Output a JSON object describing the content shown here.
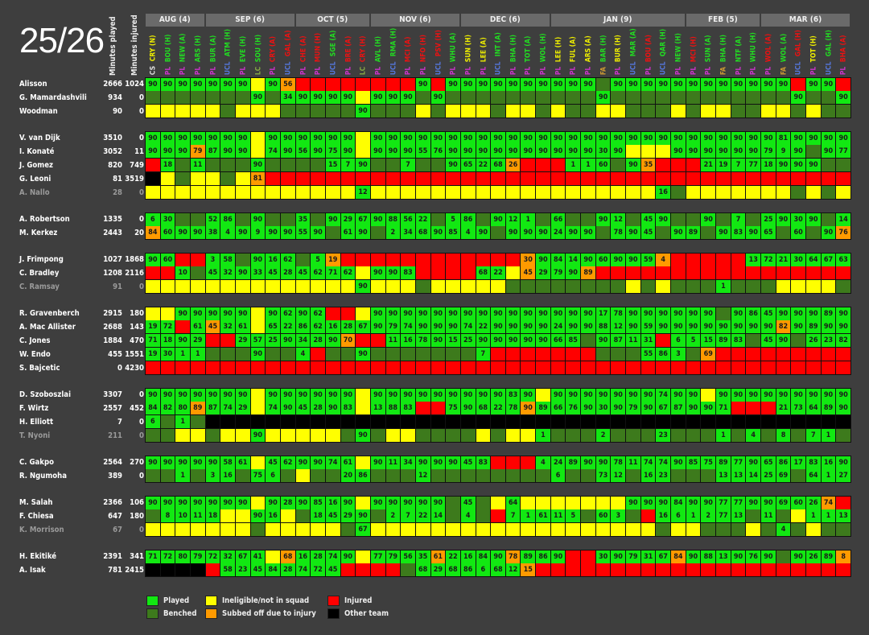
{
  "season": "25/26",
  "headers": {
    "minutes_played": "Minutes played",
    "minutes_injured": "Minutes injured"
  },
  "colors": {
    "played": "#12e812",
    "benched": "#3d7a1c",
    "ineligible": "#ffff00",
    "injured": "#ff0000",
    "subbed_injury": "#ff9a00",
    "other_team": "#000000",
    "win": "#22dd22",
    "loss": "#ee1111",
    "draw": "#eeee00",
    "PL": "#cc33cc",
    "UCL": "#5577dd",
    "LC": "#88aa44",
    "FA": "#cc9933",
    "CS": "#dddddd"
  },
  "months": [
    {
      "label": "AUG (4)",
      "span": 4
    },
    {
      "label": "SEP (6)",
      "span": 6
    },
    {
      "label": "OCT (5)",
      "span": 5
    },
    {
      "label": "NOV (6)",
      "span": 6
    },
    {
      "label": "DEC (6)",
      "span": 6
    },
    {
      "label": "JAN (9)",
      "span": 9
    },
    {
      "label": "FEB (5)",
      "span": 5
    },
    {
      "label": "MAR (6)",
      "span": 6
    }
  ],
  "matches": [
    {
      "comp": "CS",
      "opp": "CRY (N)",
      "result": "D"
    },
    {
      "comp": "PL",
      "opp": "BOU (H)",
      "result": "W"
    },
    {
      "comp": "PL",
      "opp": "NEW (A)",
      "result": "W"
    },
    {
      "comp": "PL",
      "opp": "ARS (H)",
      "result": "W"
    },
    {
      "comp": "PL",
      "opp": "BUR (A)",
      "result": "W"
    },
    {
      "comp": "UCL",
      "opp": "ATM (H)",
      "result": "W"
    },
    {
      "comp": "PL",
      "opp": "EVE (H)",
      "result": "W"
    },
    {
      "comp": "LC",
      "opp": "SOU (H)",
      "result": "W"
    },
    {
      "comp": "PL",
      "opp": "CRY (A)",
      "result": "L"
    },
    {
      "comp": "UCL",
      "opp": "GAL (A)",
      "result": "L"
    },
    {
      "comp": "PL",
      "opp": "CHE (A)",
      "result": "L"
    },
    {
      "comp": "PL",
      "opp": "MUN (H)",
      "result": "L"
    },
    {
      "comp": "UCL",
      "opp": "SGE (A)",
      "result": "W"
    },
    {
      "comp": "PL",
      "opp": "BRE (A)",
      "result": "L"
    },
    {
      "comp": "LC",
      "opp": "CRY (H)",
      "result": "L"
    },
    {
      "comp": "PL",
      "opp": "AVL (H)",
      "result": "W"
    },
    {
      "comp": "UCL",
      "opp": "RMA (H)",
      "result": "W"
    },
    {
      "comp": "PL",
      "opp": "MCI (A)",
      "result": "L"
    },
    {
      "comp": "PL",
      "opp": "NFO (H)",
      "result": "L"
    },
    {
      "comp": "UCL",
      "opp": "PSV (H)",
      "result": "L"
    },
    {
      "comp": "PL",
      "opp": "WHU (A)",
      "result": "W"
    },
    {
      "comp": "PL",
      "opp": "SUN (H)",
      "result": "D"
    },
    {
      "comp": "PL",
      "opp": "LEE (A)",
      "result": "D"
    },
    {
      "comp": "UCL",
      "opp": "INT (A)",
      "result": "W"
    },
    {
      "comp": "PL",
      "opp": "BHA (H)",
      "result": "W"
    },
    {
      "comp": "PL",
      "opp": "TOT (A)",
      "result": "W"
    },
    {
      "comp": "PL",
      "opp": "WOL (H)",
      "result": "W"
    },
    {
      "comp": "PL",
      "opp": "LEE (H)",
      "result": "D"
    },
    {
      "comp": "PL",
      "opp": "FUL (A)",
      "result": "D"
    },
    {
      "comp": "PL",
      "opp": "ARS (A)",
      "result": "D"
    },
    {
      "comp": "FA",
      "opp": "BAR (H)",
      "result": "W"
    },
    {
      "comp": "PL",
      "opp": "BUR (H)",
      "result": "D"
    },
    {
      "comp": "UCL",
      "opp": "MAR (A)",
      "result": "W"
    },
    {
      "comp": "PL",
      "opp": "BOU (A)",
      "result": "L"
    },
    {
      "comp": "UCL",
      "opp": "QAR (H)",
      "result": "W"
    },
    {
      "comp": "PL",
      "opp": "NEW (H)",
      "result": "W"
    },
    {
      "comp": "PL",
      "opp": "MCI (H)",
      "result": "L"
    },
    {
      "comp": "PL",
      "opp": "SUN (A)",
      "result": "W"
    },
    {
      "comp": "FA",
      "opp": "BHA (H)",
      "result": "W"
    },
    {
      "comp": "PL",
      "opp": "NTF (A)",
      "result": "W"
    },
    {
      "comp": "PL",
      "opp": "WHU (H)",
      "result": "W"
    },
    {
      "comp": "PL",
      "opp": "WOL (A)",
      "result": "L"
    },
    {
      "comp": "FA",
      "opp": "WOL (A)",
      "result": "W"
    },
    {
      "comp": "UCL",
      "opp": "GAL (H)",
      "result": "L"
    },
    {
      "comp": "PL",
      "opp": "TOT (H)",
      "result": "D"
    },
    {
      "comp": "UCL",
      "opp": "GAL (H)",
      "result": "W"
    },
    {
      "comp": "PL",
      "opp": "BHA (A)",
      "result": "L"
    }
  ],
  "cell_codes": {
    "B": "benched",
    "Y": "ineligible",
    "R": "injured",
    "K": "other_team",
    "O": "subbed_injury",
    "number": "played"
  },
  "groups": [
    [
      {
        "name": "Alisson",
        "played": "2666",
        "injured": "1024",
        "muted": false,
        "cells": "90 90 90 90 90 90 90 Y 90 O56 R R R R R R R R 90 R 90 90 90 90 90 90 90 90 90 90 B 90 90 90 90 90 90 90 90 90 90 90 90 R 90 90 R"
      },
      {
        "name": "G. Mamardashvili",
        "played": "934",
        "injured": "0",
        "muted": false,
        "cells": "B B B B B B B 90 B 34 90 90 90 90 Y 90 90 90 B 90 B B B B B B B B B B 90 B B B B B B B B B B B B 90 B B 90"
      },
      {
        "name": "Woodman",
        "played": "90",
        "injured": "0",
        "muted": false,
        "cells": "Y Y Y Y Y B Y Y Y B B B B B 90 B B B Y B Y Y Y B Y Y B Y B B Y Y B B B Y B Y Y B B Y Y B Y B B"
      }
    ],
    [
      {
        "name": "V. van Dijk",
        "played": "3510",
        "injured": "0",
        "muted": false,
        "cells": "90 90 90 90 90 90 90 Y 90 90 90 90 90 90 Y 90 90 90 90 90 90 90 90 90 90 90 90 90 90 90 90 90 90 90 90 90 90 90 90 90 90 90 81 90 90 90 90"
      },
      {
        "name": "I. Konaté",
        "played": "3052",
        "injured": "11",
        "muted": false,
        "cells": "90 90 90 O79 87 90 90 Y 74 90 56 90 75 90 Y 90 90 90 55 76 90 90 90 90 90 90 90 90 90 90 30 90 Y Y Y 90 90 90 90 90 90 79 9 90 B 90 77"
      },
      {
        "name": "J. Gomez",
        "played": "820",
        "injured": "749",
        "muted": false,
        "cells": "R 18 B 11 B B B 90 B B B B 15 7 90 B B 7 B B 90 65 22 68 O26 R R R 1 1 60 B 90 O35 R R R 21 19 7 77 18 90 90 90 B B"
      },
      {
        "name": "G. Leoni",
        "played": "81",
        "injured": "3519",
        "muted": false,
        "cells": "K Y B Y Y B Y O81 R R R R R R R R R R R R R R R R R R R R R R R R R R R R R R R R R R R R R R R"
      },
      {
        "name": "A. Nallo",
        "played": "28",
        "injured": "0",
        "muted": true,
        "cells": "Y Y Y Y Y Y Y Y Y Y Y Y Y Y 12 Y Y Y Y Y Y Y Y Y Y Y Y Y Y Y Y Y Y Y 16 B Y Y Y Y Y Y Y B Y B Y"
      }
    ],
    [
      {
        "name": "A. Robertson",
        "played": "1335",
        "injured": "0",
        "muted": false,
        "cells": "6 30 B B 52 86 B 90 B B 35 B 90 29 67 90 88 56 22 B 5 86 B 90 12 1 B 66 B B 90 12 B 45 90 B B 90 B 7 B 25 90 30 90 B 14"
      },
      {
        "name": "M. Kerkez",
        "played": "2443",
        "injured": "20",
        "muted": false,
        "cells": "O84 60 90 90 38 4 90 9 90 90 55 90 B 61 90 B 2 34 68 90 85 4 90 B 90 90 90 24 90 90 B 78 90 45 B 90 89 B 90 83 90 65 B 60 B 90 O76"
      }
    ],
    [
      {
        "name": "J. Frimpong",
        "played": "1027",
        "injured": "1868",
        "muted": false,
        "cells": "90 60 R R 3 58 B 90 16 62 B 5 O19 R R R R R R R R R R R R O30 90 84 14 90 60 90 90 59 O4 R R R R R 13 72 21 30 64 67 63"
      },
      {
        "name": "C. Bradley",
        "played": "1208",
        "injured": "2116",
        "muted": false,
        "cells": "R R 10 B 45 32 90 33 45 28 45 62 71 62 Y 90 90 83 R R R R 68 22 Y O45 29 79 90 O89 R R R R R R R R R R R R R R R R R"
      },
      {
        "name": "C. Ramsay",
        "played": "91",
        "injured": "0",
        "muted": true,
        "cells": "Y Y Y Y Y Y Y Y Y Y Y Y Y Y 90 Y Y Y B Y Y Y Y Y B B B B B B B B Y B Y B B B 1 B B B Y Y Y Y B"
      }
    ],
    [
      {
        "name": "R. Gravenberch",
        "played": "2915",
        "injured": "180",
        "muted": false,
        "cells": "Y Y 90 90 90 90 90 Y 90 62 90 62 R R Y 90 90 90 90 90 90 90 90 90 90 90 90 90 90 90 17 78 90 90 90 90 90 90 B 90 86 45 90 90 90 89 90"
      },
      {
        "name": "A. Mac Allister",
        "played": "2688",
        "injured": "143",
        "muted": false,
        "cells": "19 72 R 61 O45 32 61 Y 65 22 86 62 16 28 67 90 79 74 90 90 90 74 22 90 90 90 90 24 90 90 88 12 90 59 90 90 90 90 90 90 90 90 O82 90 89 90 90"
      },
      {
        "name": "C. Jones",
        "played": "1884",
        "injured": "470",
        "muted": false,
        "cells": "71 18 90 29 R R 29 57 25 90 34 28 90 O70 R R 11 16 78 90 15 25 90 90 90 90 90 66 85 B 90 87 11 31 R 6 5 15 89 83 B 45 90 B 26 23 82"
      },
      {
        "name": "W. Endo",
        "played": "455",
        "injured": "1551",
        "muted": false,
        "cells": "19 30 1 1 B B B 90 B B 4 R B B 90 B B B B B B B 7 R R R R R R R B B B 55 86 3 B O69 R R R R R R R R R"
      },
      {
        "name": "S. Bajcetic",
        "played": "0",
        "injured": "4230",
        "muted": false,
        "cells": "R R R R R R R R R R R R R R R R R R R R R R R R R R R R R R R R R R R R R R R R R R R R R R R"
      }
    ],
    [
      {
        "name": "D. Szoboszlai",
        "played": "3307",
        "injured": "0",
        "muted": false,
        "cells": "90 90 90 90 90 90 90 Y 90 90 90 90 90 90 Y 90 90 90 90 90 90 90 90 90 83 90 Y 90 90 90 90 90 90 90 74 90 90 Y 90 90 90 90 90 90 90 90 90"
      },
      {
        "name": "F. Wirtz",
        "played": "2557",
        "injured": "452",
        "muted": false,
        "cells": "84 82 80 O89 87 74 29 Y 74 90 45 28 90 83 Y 13 88 83 R R 75 90 68 22 78 O90 89 66 76 90 30 90 79 90 67 87 90 90 71 R R R 21 73 64 89 90"
      },
      {
        "name": "H. Elliott",
        "played": "7",
        "injured": "0",
        "muted": false,
        "cells": "6 B 1 B K K K K K K K K K K K K K K K K K K K K K K K K K K K K K K K K K K K K K K K K K K K"
      },
      {
        "name": "T. Nyoni",
        "played": "211",
        "injured": "0",
        "muted": true,
        "cells": "B B Y Y B Y Y 90 Y Y Y Y Y B 90 B Y Y B B B B Y B Y Y 1 B B B 2 B B B 23 B B B 1 B 4 B 8 B 7 1 B"
      }
    ],
    [
      {
        "name": "C. Gakpo",
        "played": "2564",
        "injured": "270",
        "muted": false,
        "cells": "90 90 90 90 90 58 61 Y 45 62 90 90 74 61 Y 90 11 34 90 90 90 45 83 R R R 4 24 89 90 90 78 11 74 74 90 85 75 89 77 90 65 86 17 83 16 90"
      },
      {
        "name": "R. Ngumoha",
        "played": "389",
        "injured": "0",
        "muted": false,
        "cells": "B B 1 B 3 16 B 75 6 B Y B B 20 86 B B B 12 B B B B B B B B 6 B B 73 12 B 16 23 B B B 13 13 14 25 69 B 64 1 27"
      }
    ],
    [
      {
        "name": "M. Salah",
        "played": "2366",
        "injured": "106",
        "muted": false,
        "cells": "90 90 90 90 90 90 90 Y 90 28 90 85 16 90 Y 90 90 90 90 90 B 45 B Y 64 Y Y Y Y Y Y Y 90 90 90 84 90 90 77 77 90 90 69 60 26 O74 R"
      },
      {
        "name": "F. Chiesa",
        "played": "647",
        "injured": "180",
        "muted": false,
        "cells": "B 8 10 11 18 Y Y 90 16 Y B 18 45 29 90 B 2 7 22 14 B 4 B R 7 1 61 11 5 B 60 3 B R 16 6 1 2 77 13 B 11 B Y 1 1 13"
      },
      {
        "name": "K. Morrison",
        "played": "67",
        "injured": "0",
        "muted": true,
        "cells": "Y Y Y Y Y Y Y B Y Y Y Y Y B 67 Y Y Y Y Y Y Y Y Y Y Y Y Y Y Y Y Y Y Y B Y Y B B B Y B 4 B Y B B"
      }
    ],
    [
      {
        "name": "H. Ekitiké",
        "played": "2391",
        "injured": "341",
        "muted": false,
        "cells": "71 72 80 79 72 32 67 41 Y O68 16 28 74 90 Y 77 79 56 35 O61 22 16 84 90 O78 89 86 90 R R 30 90 79 31 67 O84 90 88 13 90 76 90 B 90 26 89 O8"
      },
      {
        "name": "A. Isak",
        "played": "781",
        "injured": "2415",
        "muted": false,
        "cells": "K K K K R 58 23 45 84 28 74 72 45 R R R R B 68 29 68 86 6 68 12 O15 R R R R R R R R R R R R R R R R R R R R R"
      }
    ]
  ],
  "legend": [
    {
      "label": "Played",
      "key": "played"
    },
    {
      "label": "Ineligible/not in squad",
      "key": "ineligible"
    },
    {
      "label": "Injured",
      "key": "injured"
    },
    {
      "label": "Benched",
      "key": "benched"
    },
    {
      "label": "Subbed off due to injury",
      "key": "subbed_injury"
    },
    {
      "label": "Other team",
      "key": "other_team"
    }
  ]
}
